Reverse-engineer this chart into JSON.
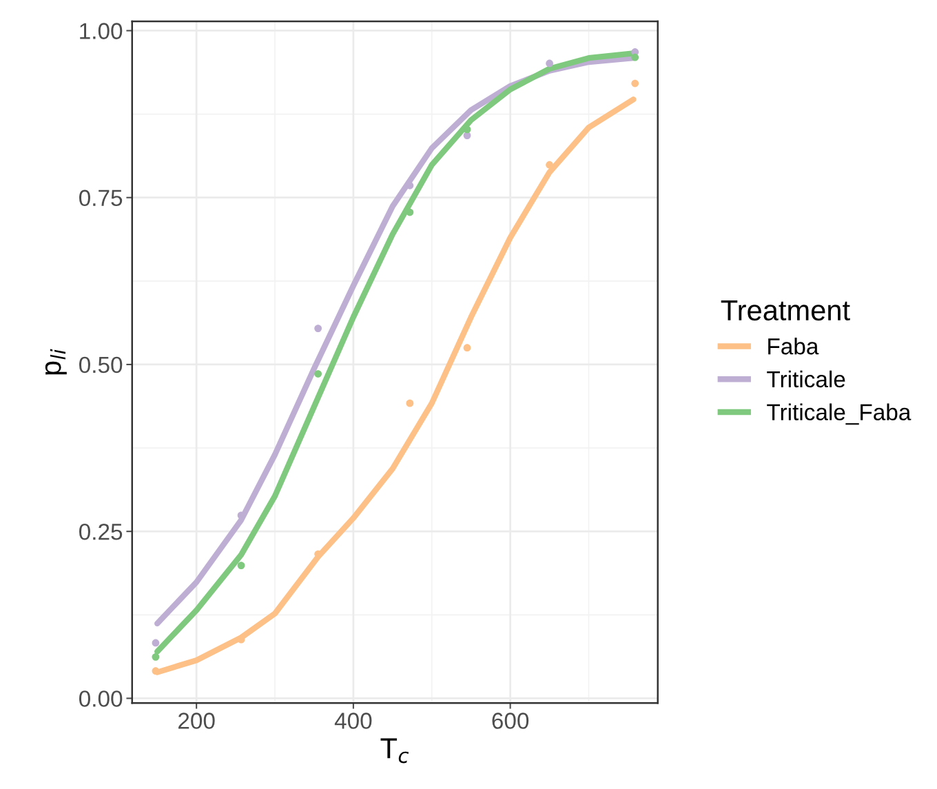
{
  "chart_data": {
    "type": "line",
    "xlabel": "T$_{c}$",
    "ylabel": "p$_{li}$",
    "legend_title": "Treatment",
    "legend": "right",
    "grid": true,
    "xlim": [
      118,
      788
    ],
    "ylim": [
      -0.007,
      1.014
    ],
    "xticks": [
      200,
      400,
      600
    ],
    "yticks": [
      {
        "value": 0,
        "label": "0.00"
      },
      {
        "value": 0.25,
        "label": "0.25"
      },
      {
        "value": 0.5,
        "label": "0.50"
      },
      {
        "value": 0.75,
        "label": "0.75"
      },
      {
        "value": 1,
        "label": "1.00"
      }
    ],
    "series": [
      {
        "name": "Faba",
        "color": "#fdc086",
        "x": [
          150,
          200,
          257,
          300,
          355,
          400,
          450,
          500,
          550,
          600,
          650,
          700,
          757
        ],
        "values": [
          0.039,
          0.057,
          0.091,
          0.127,
          0.212,
          0.27,
          0.344,
          0.442,
          0.571,
          0.69,
          0.788,
          0.855,
          0.897
        ]
      },
      {
        "name": "Triticale",
        "color": "#beaed4",
        "x": [
          150,
          200,
          257,
          300,
          350,
          400,
          450,
          500,
          550,
          600,
          650,
          700,
          757
        ],
        "values": [
          0.112,
          0.174,
          0.267,
          0.365,
          0.494,
          0.618,
          0.737,
          0.824,
          0.881,
          0.917,
          0.94,
          0.953,
          0.959
        ]
      },
      {
        "name": "Triticale_Faba",
        "color": "#7fc97f",
        "x": [
          150,
          200,
          257,
          300,
          350,
          400,
          450,
          500,
          550,
          600,
          650,
          700,
          757
        ],
        "values": [
          0.07,
          0.132,
          0.215,
          0.303,
          0.437,
          0.571,
          0.695,
          0.799,
          0.866,
          0.912,
          0.943,
          0.959,
          0.966
        ]
      },
      {
        "type": "scatter",
        "color": "#fdc086",
        "x": [
          148,
          257,
          355,
          472,
          545,
          650,
          759
        ],
        "values": [
          0.041,
          0.088,
          0.216,
          0.442,
          0.525,
          0.799,
          0.921
        ]
      },
      {
        "type": "scatter",
        "color": "#beaed4",
        "x": [
          148,
          257,
          355,
          472,
          545,
          650,
          759
        ],
        "values": [
          0.083,
          0.274,
          0.554,
          0.768,
          0.843,
          0.951,
          0.968
        ]
      },
      {
        "type": "scatter",
        "color": "#7fc97f",
        "x": [
          148,
          257,
          355,
          472,
          545,
          759
        ],
        "values": [
          0.062,
          0.199,
          0.486,
          0.728,
          0.852,
          0.96
        ]
      }
    ]
  }
}
